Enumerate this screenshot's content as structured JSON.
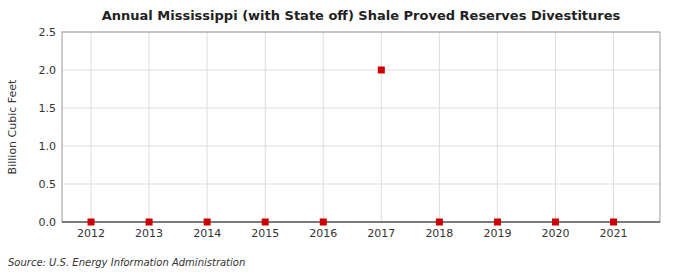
{
  "chart_data": {
    "type": "scatter",
    "title": "Annual Mississippi (with State off) Shale Proved Reserves Divestitures",
    "ylabel": "Billion Cubic Feet",
    "source": "Source: U.S. Energy Information Administration",
    "x": [
      2012,
      2013,
      2014,
      2015,
      2016,
      2017,
      2018,
      2019,
      2020,
      2021
    ],
    "values": [
      0.0,
      0.0,
      0.0,
      0.0,
      0.0,
      2.0,
      0.0,
      0.0,
      0.0,
      0.0
    ],
    "color": "#cc0000",
    "marker": "square",
    "xlim": [
      2011.5,
      2021.8
    ],
    "ylim": [
      0.0,
      2.5
    ],
    "xticks": [
      2012,
      2013,
      2014,
      2015,
      2016,
      2017,
      2018,
      2019,
      2020,
      2021
    ],
    "yticks": [
      {
        "value": 0.0,
        "label": "0.0"
      },
      {
        "value": 0.5,
        "label": "0.5"
      },
      {
        "value": 1.0,
        "label": "1.0"
      },
      {
        "value": 1.5,
        "label": "1.5"
      },
      {
        "value": 2.0,
        "label": "2.0"
      },
      {
        "value": 2.5,
        "label": "2.5"
      }
    ],
    "grid": true
  }
}
